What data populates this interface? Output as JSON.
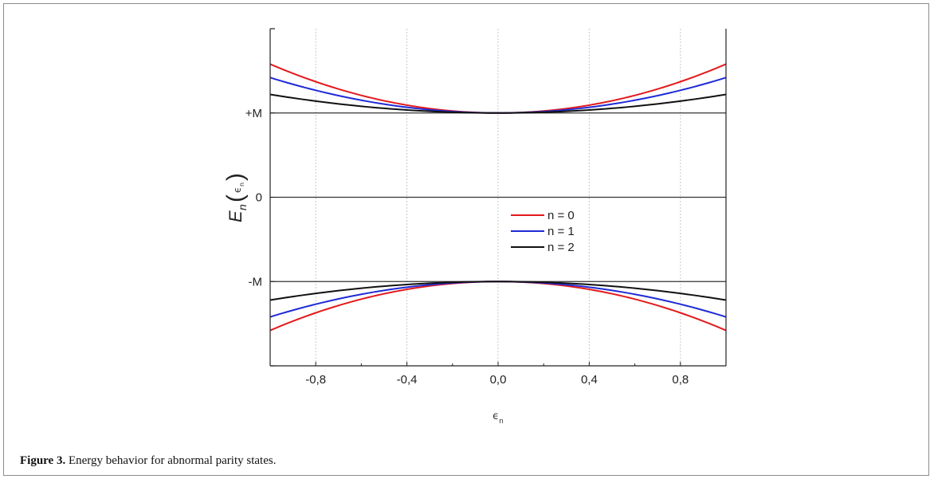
{
  "caption": {
    "label": "Figure 3.",
    "text": "Energy behavior for abnormal parity states."
  },
  "chart_data": {
    "type": "line",
    "xlabel": "ϵ",
    "xlabel_sub": "n",
    "ylabel": "E",
    "ylabel_sub": "n",
    "ylabel_arg": "ϵ",
    "ylabel_arg_sub": "n",
    "xlim": [
      -1.0,
      1.0
    ],
    "ylim": [
      -2.0,
      2.0
    ],
    "x_ticks": [
      -0.8,
      -0.4,
      0.0,
      0.4,
      0.8
    ],
    "x_tick_labels": [
      "-0,8",
      "-0,4",
      "0,0",
      "0,4",
      "0,8"
    ],
    "y_ticks": [
      1.0,
      0.0,
      -1.0
    ],
    "y_tick_labels": [
      "+M",
      "0",
      "-M"
    ],
    "grid": "vertical dotted",
    "legend_position": "center-right",
    "reference_lines": [
      1.0,
      0.0,
      -1.0
    ],
    "series": [
      {
        "name": "n = 0",
        "color": "#e31a1c",
        "curvature": 0.58
      },
      {
        "name": "n = 1",
        "color": "#1f2bd6",
        "curvature": 0.42
      },
      {
        "name": "n = 2",
        "color": "#111111",
        "curvature": 0.22
      }
    ],
    "branches": [
      {
        "baseline": 1.0,
        "direction": 1
      },
      {
        "baseline": -1.0,
        "direction": -1
      }
    ]
  }
}
